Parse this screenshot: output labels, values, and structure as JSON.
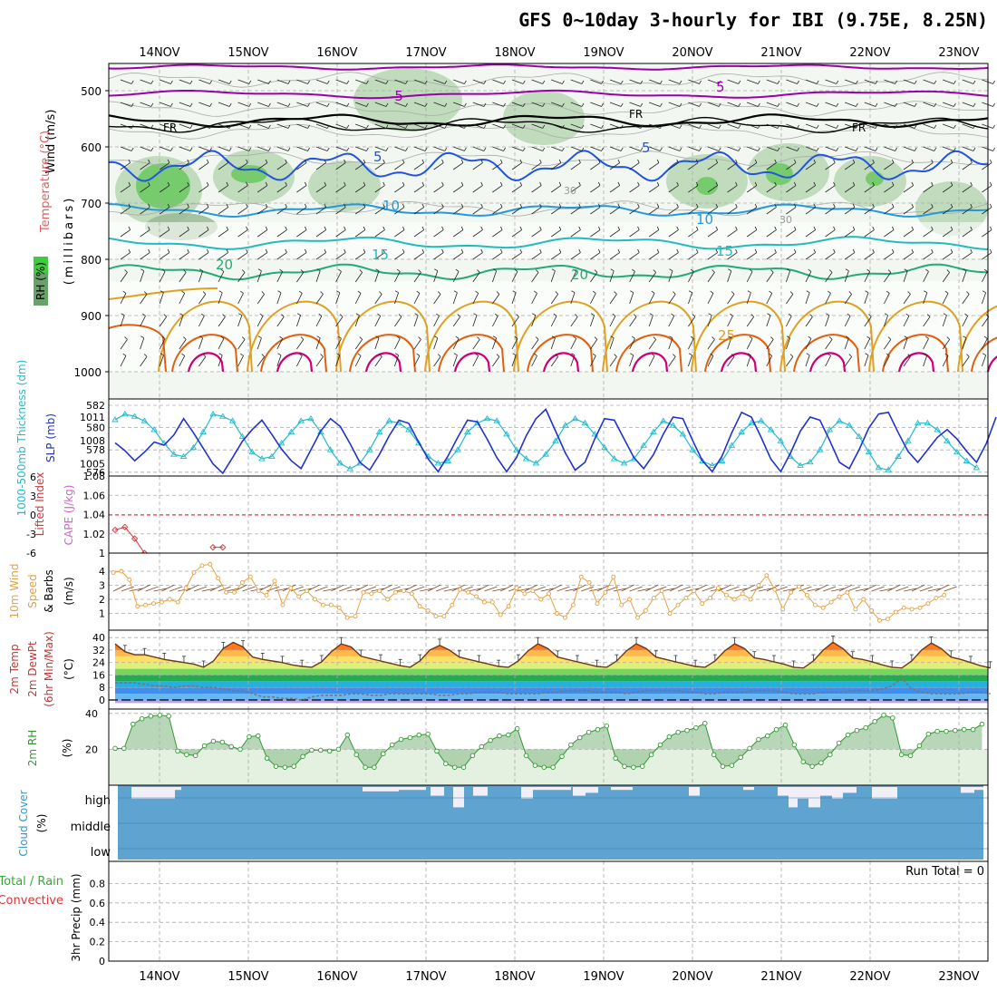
{
  "title": "GFS 0~10day 3-hourly for IBI (9.75E, 8.25N)",
  "days": [
    "14NOV",
    "15NOV",
    "16NOV",
    "17NOV",
    "18NOV",
    "19NOV",
    "20NOV",
    "21NOV",
    "22NOV",
    "23NOV"
  ],
  "colors": {
    "grid": "#aaaaaa",
    "rh_fill_light": "#e8f3e6",
    "rh_fill_mid": "#b9d6b4",
    "rh_fill_dark": "#9ab995",
    "rh_fill_high": "#69c95e",
    "temp_m5": "#9900aa",
    "temp_freezing": "#000000",
    "temp_5": "#2255dd",
    "temp_10": "#2299dd",
    "temp_15": "#22bbbb",
    "temp_20": "#22aa77",
    "temp_warm": "#e0a020",
    "temp_hot": "#e06010",
    "temp_hottest": "#cc0077",
    "thickness": "#22bbcc",
    "slp": "#2233cc",
    "lifted_index": "#dd3333",
    "cape": "#cc66cc",
    "wind10m": "#e6a040",
    "barb": "#884422",
    "dewpoint": "#777777",
    "rh2m_line": "#339933",
    "rh2m_fill": "#9ac59a",
    "rh2m_bg": "#e4f1e1",
    "cloud": "#5fa3d1",
    "cloud_gap": "#f1eff8",
    "precip_total": "#33aa33",
    "precip_conv": "#dd3333"
  },
  "panels": {
    "upper": {
      "labels": {
        "wind": "Wind (m/s)",
        "temperature": "Temperature (°C)",
        "rh_box": "RH (%)",
        "millibars": "(millibars)"
      },
      "pressure_ticks": [
        "500",
        "600",
        "700",
        "800",
        "900",
        "1000"
      ],
      "contour_labels": {
        "m5": "-5",
        "fr": "FR",
        "c5": "5",
        "c10": "10",
        "c15": "15",
        "c20": "20",
        "c25": "25",
        "c30": "30"
      }
    },
    "thickness_slp": {
      "label_thickness": "1000-500mb Thickness (dm)",
      "label_slp": "SLP (mb)",
      "left_ticks": [
        "582",
        "580",
        "578",
        "576"
      ],
      "right_ticks": [
        "1011",
        "1008",
        "1005"
      ]
    },
    "li_cape": {
      "label_li": "Lifted Index",
      "label_cape": "CAPE (J/kg)",
      "left_ticks": [
        "6",
        "3",
        "0",
        "-3",
        "-6"
      ],
      "right_ticks": [
        "1.08",
        "1.06",
        "1.04",
        "1.02",
        "1"
      ]
    },
    "wind10m": {
      "label_a": "10m Wind",
      "label_b": "Speed",
      "label_c": "& Barbs",
      "unit": "(m/s)",
      "ticks": [
        "4",
        "3",
        "2",
        "1"
      ]
    },
    "temp2m": {
      "label_a": "2m Temp",
      "label_b": "2m DewPt",
      "label_c": "(6hr Min/Max)",
      "unit": "(°C)",
      "ticks": [
        "40",
        "32",
        "24",
        "16",
        "8",
        "0"
      ]
    },
    "rh2m": {
      "label": "2m RH",
      "unit": "(%)",
      "ticks": [
        "40",
        "20"
      ]
    },
    "cloud": {
      "label": "Cloud Cover",
      "unit": "(%)",
      "levels": [
        "high",
        "middle",
        "low"
      ]
    },
    "precip": {
      "label_a": "3hr Precip (mm)",
      "label_b": "Total / Rain",
      "label_c": "Convective",
      "run_total": "Run Total = 0",
      "ticks": [
        "0.8",
        "0.6",
        "0.4",
        "0.2",
        "0"
      ]
    }
  },
  "chart_data": [
    {
      "type": "line",
      "panel": "1000-500mb Thickness / SLP",
      "x": "3-hourly steps, 13NOV 12Z to 23NOV 06Z",
      "series": [
        {
          "name": "1000-500mb Thickness (dm)",
          "values": [
            580.7,
            581.2,
            581.0,
            580.6,
            579.8,
            578.6,
            577.6,
            577.4,
            578.2,
            579.6,
            581.2,
            581.0,
            580.6,
            579.2,
            577.8,
            577.2,
            577.4,
            578.6,
            579.6,
            580.6,
            580.8,
            579.6,
            578.0,
            576.8,
            576.3,
            576.8,
            578.0,
            579.6,
            580.6,
            580.4,
            579.8,
            578.6,
            577.4,
            576.8,
            577.0,
            578.0,
            579.6,
            580.4,
            580.8,
            580.6,
            579.4,
            578.0,
            577.2,
            576.8,
            577.6,
            578.8,
            580.2,
            580.8,
            580.4,
            579.4,
            578.2,
            577.2,
            576.8,
            577.2,
            578.4,
            579.6,
            580.6,
            580.2,
            579.4,
            578.0,
            577.0,
            576.6,
            577.0,
            578.4,
            579.6,
            580.4,
            580.6,
            579.8,
            578.8,
            577.4,
            576.6,
            576.9,
            578.0,
            579.8,
            580.6,
            580.2,
            579.2,
            577.8,
            576.4,
            576.2,
            577.4,
            578.8,
            580.4,
            580.4,
            579.8,
            578.8,
            577.8,
            577.0,
            576.4
          ]
        },
        {
          "name": "SLP (mb)",
          "values": [
            1007.7,
            1006.7,
            1005.4,
            1006.5,
            1007.8,
            1007.4,
            1008.7,
            1010.8,
            1009.0,
            1007.0,
            1005.0,
            1003.8,
            1005.8,
            1007.9,
            1009.4,
            1010.6,
            1008.8,
            1006.9,
            1005.4,
            1004.4,
            1006.8,
            1009.2,
            1010.8,
            1009.8,
            1007.6,
            1005.2,
            1004.2,
            1006.2,
            1008.6,
            1010.6,
            1010.2,
            1007.8,
            1005.6,
            1004.0,
            1006.0,
            1008.4,
            1010.6,
            1010.4,
            1008.2,
            1005.8,
            1004.0,
            1005.8,
            1008.6,
            1010.8,
            1012.0,
            1009.2,
            1006.4,
            1004.2,
            1005.2,
            1008.2,
            1010.8,
            1010.6,
            1008.2,
            1005.8,
            1004.4,
            1006.2,
            1008.8,
            1011.0,
            1010.8,
            1008.0,
            1005.4,
            1004.0,
            1006.0,
            1009.0,
            1011.6,
            1011.0,
            1008.4,
            1005.6,
            1004.0,
            1006.4,
            1009.2,
            1011.0,
            1010.6,
            1008.0,
            1005.2,
            1004.4,
            1006.8,
            1009.6,
            1011.4,
            1011.6,
            1009.0,
            1006.6,
            1005.2,
            1006.8,
            1008.4,
            1009.4,
            1008.2,
            1006.6,
            1005.2,
            1007.6,
            1011.0
          ]
        }
      ]
    },
    {
      "type": "line",
      "panel": "Lifted Index / CAPE",
      "series": [
        {
          "name": "CAPE (J/kg)",
          "x": [
            0,
            1,
            2,
            3,
            10,
            11,
            91,
            92,
            93
          ],
          "values": [
            1.024,
            1.027,
            1.015,
            1.0,
            1.006,
            1.006,
            1.025,
            1.003,
            1.004
          ]
        }
      ]
    },
    {
      "type": "line",
      "panel": "10m Wind Speed",
      "unit": "m/s",
      "series": [
        {
          "name": "10m Wind Speed",
          "values": [
            3.9,
            4.0,
            3.4,
            1.5,
            1.6,
            1.7,
            1.8,
            2.0,
            1.8,
            2.8,
            3.9,
            4.4,
            4.5,
            3.5,
            2.5,
            2.5,
            3.2,
            3.6,
            2.6,
            2.3,
            3.3,
            1.6,
            2.8,
            2.2,
            2.6,
            2.0,
            1.6,
            1.6,
            1.4,
            0.7,
            0.8,
            2.5,
            2.4,
            2.6,
            2.0,
            2.5,
            2.6,
            2.4,
            1.5,
            1.2,
            0.8,
            0.8,
            1.6,
            2.7,
            2.5,
            2.2,
            1.8,
            1.8,
            0.9,
            1.5,
            2.8,
            2.4,
            2.6,
            2.0,
            2.4,
            1.0,
            0.7,
            1.6,
            3.6,
            3.2,
            1.7,
            2.5,
            3.6,
            1.6,
            2.0,
            0.7,
            1.2,
            2.1,
            2.6,
            1.0,
            1.6,
            2.1,
            2.6,
            1.7,
            2.1,
            2.8,
            2.3,
            2.0,
            2.4,
            2.0,
            3.0,
            3.7,
            2.7,
            1.3,
            2.5,
            2.9,
            2.3,
            1.6,
            1.4,
            1.8,
            2.2,
            2.5,
            1.3,
            2.0,
            1.2,
            0.5,
            0.6,
            1.1,
            1.4,
            1.3,
            1.4,
            1.7,
            2.1,
            2.3
          ]
        }
      ]
    },
    {
      "type": "area",
      "panel": "2m Temp / DewPt",
      "unit": "°C",
      "series": [
        {
          "name": "2m Temp",
          "values": [
            36.0,
            31.0,
            29.0,
            29.0,
            27.5,
            26.0,
            25.0,
            24.0,
            23.0,
            21.0,
            25.0,
            33.0,
            37.0,
            34.0,
            27.5,
            26.0,
            25.0,
            24.0,
            22.5,
            21.5,
            21.0,
            24.5,
            31.0,
            36.0,
            34.0,
            28.0,
            26.5,
            25.0,
            23.5,
            22.0,
            21.0,
            25.0,
            32.0,
            35.0,
            32.0,
            27.5,
            26.0,
            24.5,
            23.0,
            21.5,
            21.0,
            25.0,
            31.5,
            36.0,
            33.0,
            27.5,
            26.0,
            24.5,
            23.0,
            21.5,
            21.0,
            25.0,
            31.5,
            36.0,
            33.0,
            27.5,
            26.0,
            24.5,
            23.0,
            21.5,
            21.0,
            25.0,
            31.5,
            36.0,
            33.0,
            27.0,
            26.0,
            24.5,
            23.0,
            21.0,
            20.5,
            25.0,
            32.0,
            37.0,
            33.0,
            27.0,
            26.0,
            24.5,
            22.5,
            21.0,
            20.5,
            25.0,
            32.0,
            36.5,
            33.0,
            27.5,
            26.0,
            24.0,
            22.0,
            20.5
          ]
        },
        {
          "name": "2m DewPt",
          "values": [
            11,
            11,
            11,
            10,
            9,
            9,
            8,
            9,
            9,
            8,
            8,
            7,
            6,
            6,
            4,
            2,
            2,
            1,
            1,
            0,
            2,
            3,
            3,
            3,
            4,
            4,
            3,
            3,
            4,
            4,
            4,
            4,
            4,
            3,
            3,
            4,
            4,
            5,
            5,
            5,
            4,
            4,
            4,
            4,
            5,
            5,
            6,
            6,
            6,
            5,
            5,
            5,
            4,
            5,
            6,
            6,
            6,
            6,
            5,
            5,
            4,
            4,
            5,
            5,
            5,
            6,
            6,
            6,
            5,
            4,
            4,
            4,
            5,
            5,
            5,
            6,
            6,
            6,
            7,
            9,
            14,
            7,
            5,
            4,
            4,
            4,
            4,
            5,
            5,
            4
          ]
        }
      ]
    },
    {
      "type": "area",
      "panel": "2m RH",
      "unit": "%",
      "series": [
        {
          "name": "2m RH",
          "values": [
            20.5,
            20.5,
            34.0,
            37.0,
            38.5,
            39.0,
            38.5,
            19.0,
            17.0,
            16.5,
            22.0,
            24.5,
            24.0,
            21.5,
            20.0,
            27.0,
            27.5,
            15.0,
            10.5,
            10.0,
            10.5,
            16.0,
            19.5,
            19.5,
            19.0,
            20.0,
            28.0,
            17.0,
            10.0,
            10.0,
            17.5,
            22.5,
            25.5,
            26.5,
            28.0,
            28.5,
            19.0,
            12.0,
            10.0,
            10.0,
            16.5,
            21.5,
            25.0,
            27.5,
            28.0,
            31.5,
            16.5,
            11.0,
            10.0,
            10.0,
            16.0,
            22.5,
            26.5,
            29.5,
            31.0,
            33.0,
            15.0,
            10.5,
            10.0,
            10.5,
            17.0,
            22.5,
            27.0,
            29.5,
            30.5,
            32.0,
            34.5,
            17.0,
            10.5,
            11.0,
            15.5,
            20.5,
            25.5,
            27.5,
            31.0,
            33.5,
            22.5,
            13.0,
            10.5,
            12.5,
            17.0,
            23.5,
            28.0,
            30.5,
            32.0,
            35.5,
            39.0,
            37.5,
            17.0,
            16.5,
            22.0,
            28.5,
            30.0,
            30.0,
            30.5,
            31.0,
            31.0,
            34.0
          ]
        }
      ]
    },
    {
      "type": "bar",
      "panel": "Cloud Cover (%)",
      "categories": [
        "high",
        "middle",
        "low"
      ],
      "series": [
        {
          "name": "high cloud gaps",
          "values_note": "white gaps across 'high' row"
        }
      ]
    },
    {
      "type": "bar",
      "panel": "3hr Precip (mm)",
      "ylim": [
        0,
        1.0
      ],
      "series": [
        {
          "name": "3hr Precip (mm)",
          "values": []
        }
      ]
    }
  ]
}
